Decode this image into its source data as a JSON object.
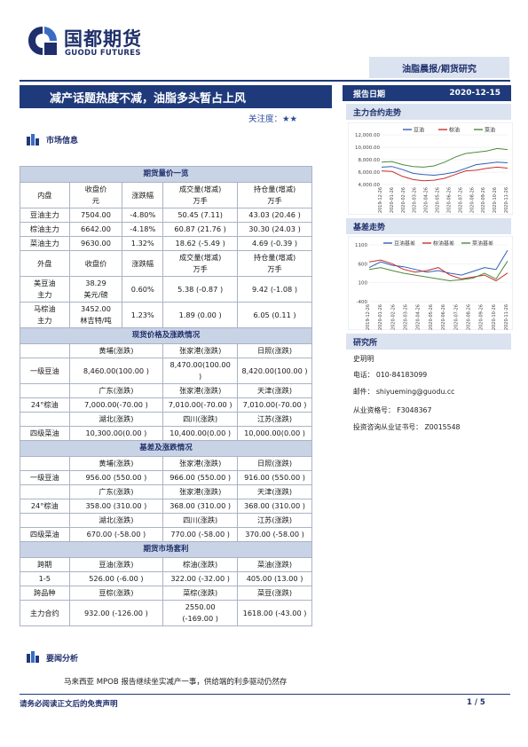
{
  "header": {
    "logo_cn": "国都期货",
    "logo_en": "GUODU FUTURES",
    "category": "油脂晨报/期货研究",
    "title": "减产话题热度不减，油脂多头暂占上风",
    "attention_label": "关注度：",
    "attention_stars": "★★",
    "date_label": "报告日期",
    "date_value": "2020-12-15"
  },
  "sections": {
    "market_info": "市场信息",
    "main_contract": "主力合约走势",
    "basis_trend": "基差走势",
    "research": "研究所",
    "news": "要闻分析"
  },
  "research": {
    "name": "史玥明",
    "phone": "电话： 010-84183099",
    "email": "邮件： shiyueming@guodu.cc",
    "license": "从业资格号： F3048367",
    "advisory": "投资咨询从业证书号： Z0015548"
  },
  "news": {
    "text": "马来西亚 MPOB 报告继续坐实减产一事，供给端的利多驱动仍然存"
  },
  "footer": {
    "disclaimer": "请务必阅读正文后的免责声明",
    "page": "1 / 5"
  },
  "table": {
    "futures_band": "期货量价一览",
    "h1": [
      "内盘",
      "收盘价\n元",
      "涨跌幅",
      "成交量(增减)\n万手",
      "持仓量(增减)\n万手"
    ],
    "r1": [
      [
        "豆油主力",
        "7504.00",
        "-4.80%",
        "50.45 (7.11)",
        "43.03 (20.46 )"
      ],
      [
        "棕油主力",
        "6642.00",
        "-4.18%",
        "60.87 (21.76 )",
        "30.30 (24.03 )"
      ],
      [
        "菜油主力",
        "9630.00",
        "1.32%",
        "18.62 (-5.49 )",
        "4.69 (-0.39 )"
      ]
    ],
    "h2": [
      "外盘",
      "收盘价",
      "涨跌幅",
      "成交量(增减)\n万手",
      "持仓量(增减)\n万手"
    ],
    "r2": [
      [
        "美豆油\n主力",
        "38.29\n美元/磅",
        "0.60%",
        "5.38 (-0.87 )",
        "9.42 (-1.08 )"
      ],
      [
        "马棕油\n主力",
        "3452.00\n林吉特/吨",
        "1.23%",
        "1.89 (0.00 )",
        "6.05 (0.11 )"
      ]
    ],
    "spot_band": "现货价格及涨跌情况",
    "spot": [
      [
        "",
        "黄埔(涨跌)",
        "张家港(涨跌)",
        "日照(涨跌)"
      ],
      [
        "一级豆油",
        "8,460.00(100.00 )",
        "8,470.00(100.00\n)",
        "8,420.00(100.00 )"
      ],
      [
        "",
        "广东(涨跌)",
        "张家港(涨跌)",
        "天津(涨跌)"
      ],
      [
        "24°棕油",
        "7,000.00(-70.00 )",
        "7,010.00(-70.00 )",
        "7,010.00(-70.00 )"
      ],
      [
        "",
        "湖北(涨跌)",
        "四川(涨跌)",
        "江苏(涨跌)"
      ],
      [
        "四级菜油",
        "10,300.00(0.00 )",
        "10,400.00(0.00 )",
        "10,000.00(0.00 )"
      ]
    ],
    "basis_band": "基差及涨跌情况",
    "basis": [
      [
        "",
        "黄埔(涨跌)",
        "张家港(涨跌)",
        "日照(涨跌)"
      ],
      [
        "一级豆油",
        "956.00 (550.00 )",
        "966.00 (550.00 )",
        "916.00 (550.00 )"
      ],
      [
        "",
        "广东(涨跌)",
        "张家港(涨跌)",
        "天津(涨跌)"
      ],
      [
        "24°棕油",
        "358.00 (310.00 )",
        "368.00 (310.00 )",
        "368.00 (310.00 )"
      ],
      [
        "",
        "湖北(涨跌)",
        "四川(涨跌)",
        "江苏(涨跌)"
      ],
      [
        "四级菜油",
        "670.00 (-58.00 )",
        "770.00 (-58.00 )",
        "370.00 (-58.00 )"
      ]
    ],
    "arb_band": "期货市场套利",
    "arb": [
      [
        "跨期",
        "豆油(涨跌)",
        "棕油(涨跌)",
        "菜油(涨跌)"
      ],
      [
        "1-5",
        "526.00 (-6.00 )",
        "322.00 (-32.00 )",
        "405.00 (13.00 )"
      ],
      [
        "跨品种",
        "豆棕(涨跌)",
        "菜棕(涨跌)",
        "菜豆(涨跌)"
      ],
      [
        "主力合约",
        "932.00 (-126.00 )",
        "2550.00\n(-169.00 )",
        "1618.00 (-43.00 )"
      ]
    ]
  },
  "chart_data": [
    {
      "type": "line",
      "legend": [
        "豆油",
        "棕油",
        "菜油"
      ],
      "colors": [
        "#2f5fb3",
        "#c8302c",
        "#4d8a3a"
      ],
      "y_ticks": [
        "12,000.00",
        "10,000.00",
        "8,000.00",
        "6,000.00",
        "4,000.00"
      ],
      "ylim": [
        4000,
        12000
      ],
      "x_ticks": [
        "2019-12-26",
        "2020-01-26",
        "2020-02-26",
        "2020-03-26",
        "2020-04-26",
        "2020-05-26",
        "2020-06-26",
        "2020-07-26",
        "2020-08-26",
        "2020-09-26",
        "2020-10-26",
        "2020-11-26"
      ],
      "series": [
        {
          "name": "豆油",
          "values": [
            6800,
            6900,
            6400,
            5800,
            5600,
            5500,
            5700,
            6000,
            6600,
            7200,
            7400,
            7600,
            7500
          ]
        },
        {
          "name": "棕油",
          "values": [
            6200,
            6100,
            5300,
            4800,
            4600,
            4700,
            5000,
            5600,
            6200,
            6300,
            6600,
            6800,
            6640
          ]
        },
        {
          "name": "菜油",
          "values": [
            7600,
            7700,
            7200,
            6900,
            6800,
            7000,
            7600,
            8400,
            9000,
            9200,
            9400,
            9800,
            9630
          ]
        }
      ]
    },
    {
      "type": "line",
      "legend": [
        "豆油基差",
        "棕油基差",
        "菜油基差"
      ],
      "colors": [
        "#2f5fb3",
        "#c8302c",
        "#4d8a3a"
      ],
      "y_ticks": [
        "1100",
        "600",
        "100",
        "-400"
      ],
      "ylim": [
        -400,
        1100
      ],
      "x_ticks": [
        "2019-12-26",
        "2020-01-26",
        "2020-02-26",
        "2020-03-26",
        "2020-04-26",
        "2020-05-26",
        "2020-06-26",
        "2020-07-26",
        "2020-08-26",
        "2020-09-26",
        "2020-10-26",
        "2020-11-26"
      ],
      "series": [
        {
          "name": "豆油基差",
          "values": [
            500,
            650,
            560,
            520,
            450,
            380,
            420,
            350,
            300,
            400,
            500,
            450,
            956
          ]
        },
        {
          "name": "棕油基差",
          "values": [
            650,
            700,
            600,
            450,
            380,
            420,
            500,
            300,
            200,
            250,
            300,
            150,
            358
          ]
        },
        {
          "name": "菜油基差",
          "values": [
            450,
            500,
            420,
            350,
            300,
            250,
            200,
            150,
            180,
            220,
            350,
            200,
            670
          ]
        }
      ]
    }
  ]
}
